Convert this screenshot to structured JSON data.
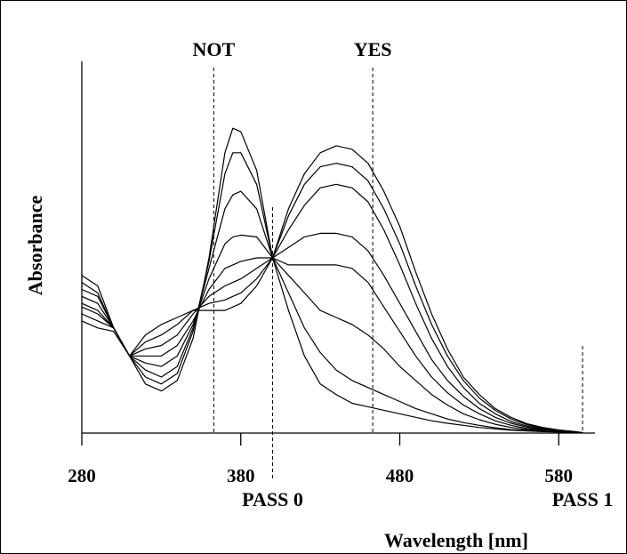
{
  "chart_data": {
    "type": "line",
    "title": "",
    "xlabel": "Wavelength [nm]",
    "ylabel": "Absorbance",
    "xlim": [
      280,
      600
    ],
    "ylim": [
      0,
      1
    ],
    "x_ticks": [
      280,
      380,
      480,
      580
    ],
    "grid": false,
    "legend": "none",
    "line_color": "#000000",
    "markers": [
      {
        "label": "NOT",
        "x": 363,
        "position": "top"
      },
      {
        "label": "PASS 0",
        "x": 400,
        "position": "bottom"
      },
      {
        "label": "YES",
        "x": 463,
        "position": "top"
      },
      {
        "label": "PASS 1",
        "x": 595,
        "position": "bottom"
      }
    ],
    "x": [
      280,
      290,
      300,
      310,
      320,
      330,
      340,
      350,
      360,
      370,
      375,
      380,
      390,
      400,
      410,
      420,
      430,
      440,
      450,
      460,
      470,
      480,
      490,
      500,
      510,
      520,
      530,
      540,
      550,
      560,
      570,
      580,
      590,
      595
    ],
    "series": [
      {
        "values": [
          0.45,
          0.42,
          0.3,
          0.22,
          0.14,
          0.12,
          0.15,
          0.27,
          0.5,
          0.8,
          0.87,
          0.86,
          0.75,
          0.5,
          0.35,
          0.22,
          0.14,
          0.11,
          0.085,
          0.075,
          0.065,
          0.055,
          0.045,
          0.035,
          0.028,
          0.022,
          0.016,
          0.012,
          0.008,
          0.006,
          0.004,
          0.003,
          0.002,
          0.001
        ]
      },
      {
        "values": [
          0.43,
          0.4,
          0.3,
          0.22,
          0.16,
          0.14,
          0.17,
          0.29,
          0.49,
          0.74,
          0.8,
          0.8,
          0.71,
          0.5,
          0.4,
          0.3,
          0.23,
          0.18,
          0.15,
          0.13,
          0.11,
          0.09,
          0.07,
          0.055,
          0.04,
          0.03,
          0.022,
          0.015,
          0.01,
          0.007,
          0.005,
          0.003,
          0.002,
          0.001
        ]
      },
      {
        "values": [
          0.41,
          0.39,
          0.3,
          0.22,
          0.18,
          0.16,
          0.19,
          0.3,
          0.47,
          0.64,
          0.68,
          0.69,
          0.64,
          0.5,
          0.45,
          0.4,
          0.35,
          0.33,
          0.31,
          0.28,
          0.24,
          0.19,
          0.15,
          0.11,
          0.08,
          0.055,
          0.038,
          0.025,
          0.016,
          0.01,
          0.006,
          0.004,
          0.002,
          0.001
        ]
      },
      {
        "values": [
          0.39,
          0.37,
          0.3,
          0.22,
          0.2,
          0.19,
          0.22,
          0.31,
          0.44,
          0.54,
          0.56,
          0.565,
          0.56,
          0.5,
          0.48,
          0.48,
          0.48,
          0.48,
          0.47,
          0.43,
          0.36,
          0.29,
          0.22,
          0.16,
          0.115,
          0.08,
          0.055,
          0.035,
          0.022,
          0.013,
          0.008,
          0.005,
          0.003,
          0.001
        ]
      },
      {
        "values": [
          0.37,
          0.35,
          0.3,
          0.22,
          0.22,
          0.22,
          0.25,
          0.32,
          0.41,
          0.47,
          0.48,
          0.49,
          0.5,
          0.5,
          0.53,
          0.56,
          0.57,
          0.57,
          0.56,
          0.52,
          0.45,
          0.37,
          0.29,
          0.21,
          0.15,
          0.105,
          0.07,
          0.045,
          0.028,
          0.017,
          0.01,
          0.006,
          0.003,
          0.001
        ]
      },
      {
        "values": [
          0.36,
          0.34,
          0.3,
          0.22,
          0.24,
          0.25,
          0.28,
          0.34,
          0.39,
          0.42,
          0.43,
          0.44,
          0.47,
          0.5,
          0.58,
          0.65,
          0.7,
          0.71,
          0.7,
          0.66,
          0.58,
          0.48,
          0.37,
          0.27,
          0.19,
          0.13,
          0.085,
          0.055,
          0.033,
          0.02,
          0.012,
          0.007,
          0.004,
          0.001
        ]
      },
      {
        "values": [
          0.34,
          0.32,
          0.3,
          0.22,
          0.26,
          0.28,
          0.31,
          0.35,
          0.37,
          0.38,
          0.39,
          0.4,
          0.44,
          0.5,
          0.62,
          0.71,
          0.76,
          0.77,
          0.76,
          0.72,
          0.64,
          0.54,
          0.42,
          0.31,
          0.22,
          0.15,
          0.1,
          0.065,
          0.04,
          0.024,
          0.014,
          0.008,
          0.004,
          0.001
        ]
      },
      {
        "values": [
          0.32,
          0.3,
          0.29,
          0.22,
          0.28,
          0.31,
          0.33,
          0.35,
          0.35,
          0.35,
          0.36,
          0.37,
          0.42,
          0.5,
          0.64,
          0.74,
          0.8,
          0.82,
          0.81,
          0.77,
          0.69,
          0.59,
          0.46,
          0.34,
          0.24,
          0.16,
          0.11,
          0.07,
          0.045,
          0.027,
          0.016,
          0.009,
          0.004,
          0.001
        ]
      }
    ]
  }
}
